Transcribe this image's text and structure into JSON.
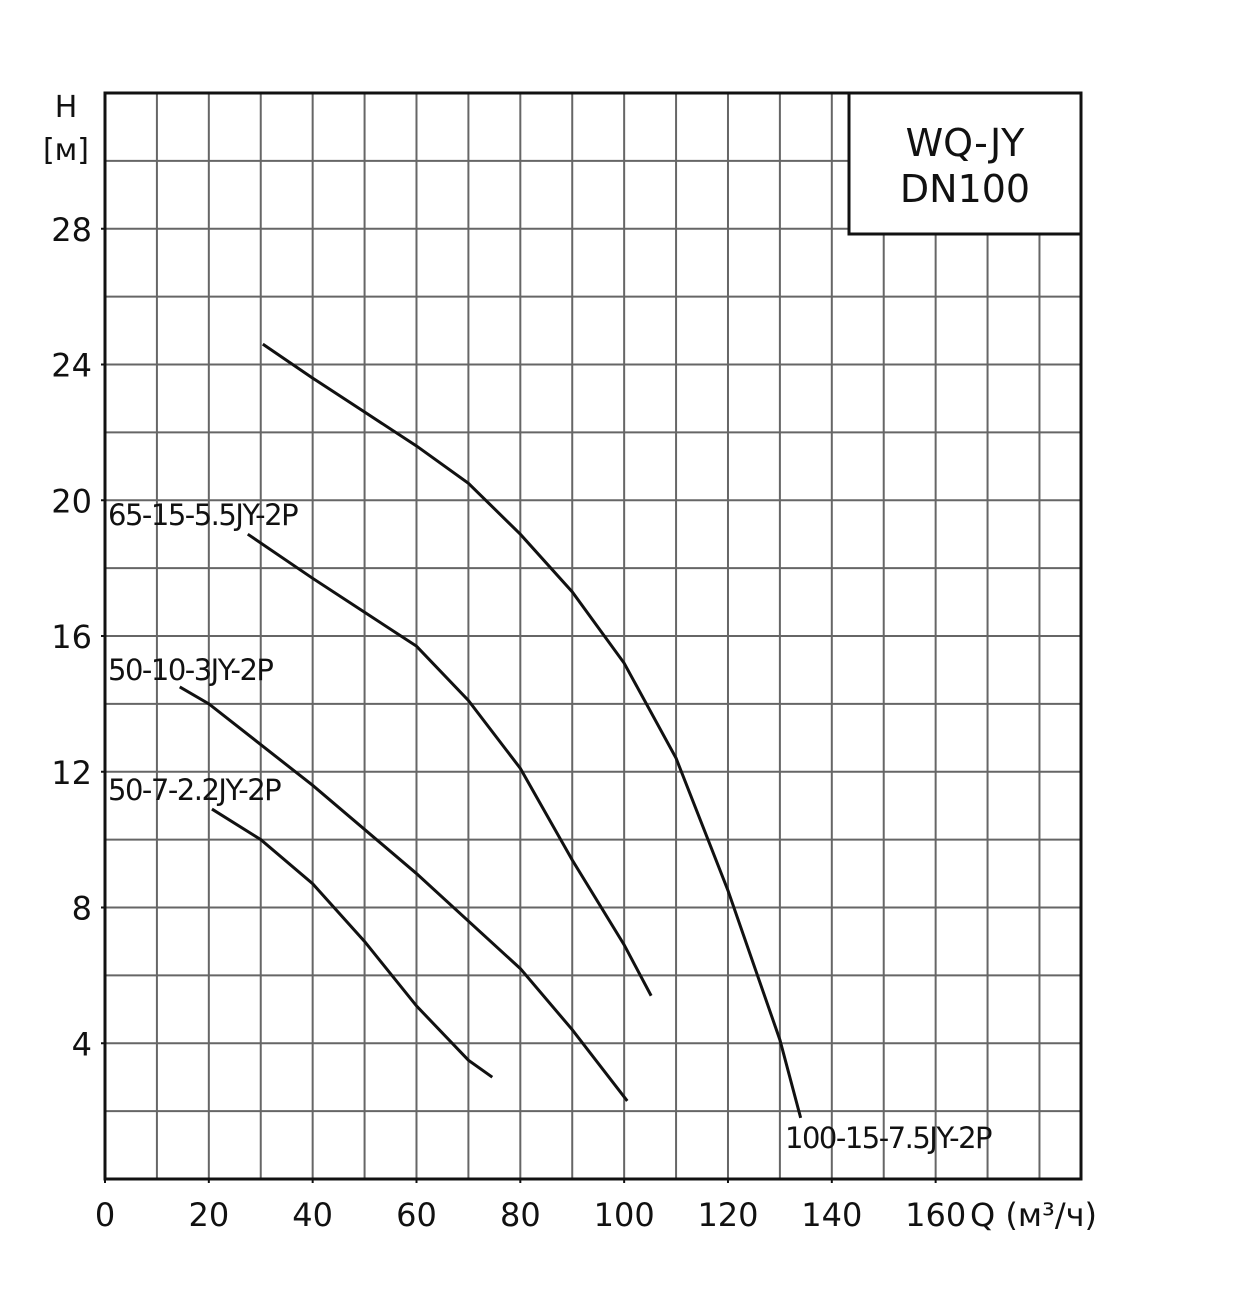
{
  "chart_data": {
    "type": "line",
    "title": "WQ-JY",
    "subtitle": "DN100",
    "y_label": "H",
    "y_unit": "[м]",
    "x_label": "Q (м³/ч)",
    "xlim": [
      0,
      188
    ],
    "ylim": [
      0,
      32
    ],
    "xticks": [
      0,
      20,
      40,
      60,
      80,
      100,
      120,
      140,
      160
    ],
    "yticks": [
      4,
      8,
      12,
      16,
      20,
      24,
      28
    ],
    "grid": true,
    "grid_step_x": 10,
    "grid_step_y": 2,
    "series": [
      {
        "name": "100-15-7.5JY-2P",
        "color": "#111111",
        "x": [
          30.4,
          40,
          50,
          60,
          70,
          80,
          90,
          100,
          110,
          120,
          130,
          134
        ],
        "values": [
          24.6,
          23.6,
          22.6,
          21.6,
          20.5,
          19.0,
          17.3,
          15.2,
          12.4,
          8.5,
          4.1,
          1.8
        ]
      },
      {
        "name": "65-15-5.5JY-2P",
        "color": "#111111",
        "x": [
          27.5,
          40,
          50,
          60,
          70,
          80,
          90,
          100,
          105.2
        ],
        "values": [
          19.0,
          17.7,
          16.7,
          15.7,
          14.1,
          12.1,
          9.4,
          6.9,
          5.4
        ]
      },
      {
        "name": "50-10-3JY-2P",
        "color": "#111111",
        "x": [
          14.4,
          20,
          40,
          60,
          80,
          90,
          100.6
        ],
        "values": [
          14.5,
          14.0,
          11.6,
          9.0,
          6.2,
          4.4,
          2.3
        ]
      },
      {
        "name": "50-7-2.2JY-2P",
        "color": "#111111",
        "x": [
          20.6,
          30,
          40,
          50,
          60,
          70,
          74.6
        ],
        "values": [
          10.9,
          10.0,
          8.7,
          7.0,
          5.1,
          3.5,
          3.0
        ]
      }
    ]
  }
}
